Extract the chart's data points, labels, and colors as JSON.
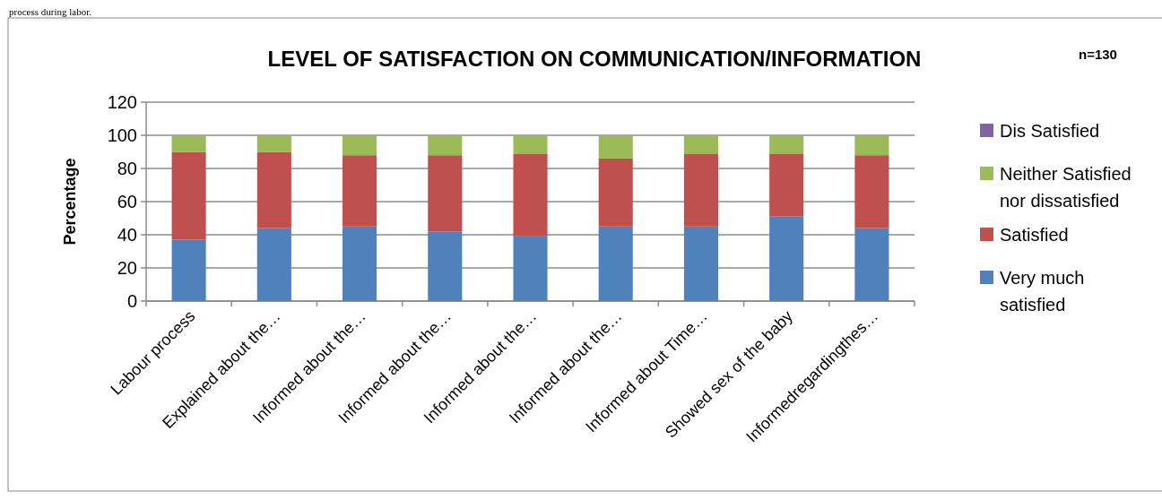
{
  "chart_data": {
    "type": "bar",
    "title": "LEVEL OF SATISFACTION ON COMMUNICATION/INFORMATION",
    "ylabel": "Percentage",
    "annotations": [
      "n=130",
      "process during labor."
    ],
    "categories": [
      "Labour process",
      "Explained about the…",
      "Informed about the…",
      "Informed about the…",
      "Informed about the…",
      "Informed about the…",
      "Informed about Time…",
      "Showed sex of the baby",
      "Informedregardingthes…"
    ],
    "stacked": true,
    "ylim": [
      0,
      120
    ],
    "yticks": [
      0,
      20,
      40,
      60,
      80,
      100,
      120
    ],
    "grid": "y",
    "legend": "right",
    "series": [
      {
        "name": "Very much satisfied",
        "color": "#4f81bd",
        "values": [
          37,
          44,
          45,
          42,
          39,
          45,
          45,
          51,
          44
        ]
      },
      {
        "name": "Satisfied",
        "color": "#c0504d",
        "values": [
          53,
          46,
          43,
          46,
          50,
          41,
          44,
          38,
          44
        ]
      },
      {
        "name": "Neither Satisfied nor dissatisfied",
        "color": "#9bbb59",
        "values": [
          10,
          10,
          12,
          12,
          11,
          14,
          11,
          11,
          12
        ]
      },
      {
        "name": "Dis Satisfied",
        "color": "#8064a2",
        "values": [
          0,
          0,
          0,
          0,
          0,
          0,
          0,
          0,
          0
        ]
      }
    ]
  }
}
